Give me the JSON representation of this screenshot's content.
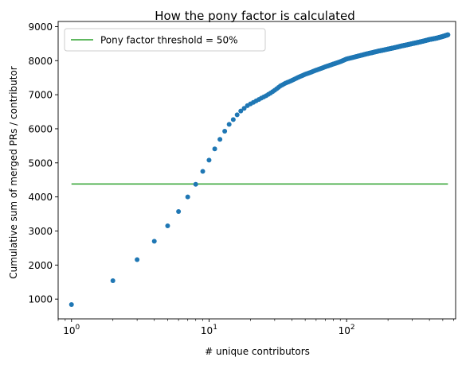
{
  "chart_data": {
    "type": "scatter",
    "title": "How the pony factor is calculated",
    "xlabel": "# unique contributors",
    "ylabel": "Cumulative sum of merged PRs / contributor",
    "xscale": "log",
    "xlim": [
      0.8,
      620
    ],
    "ylim": [
      420,
      9150
    ],
    "x_ticks": [
      {
        "value": 1,
        "base": "10",
        "exp": "0"
      },
      {
        "value": 10,
        "base": "10",
        "exp": "1"
      },
      {
        "value": 100,
        "base": "10",
        "exp": "2"
      }
    ],
    "y_ticks": [
      1000,
      2000,
      3000,
      4000,
      5000,
      6000,
      7000,
      8000,
      9000
    ],
    "grid": false,
    "legend_position": "top-left",
    "threshold": {
      "name": "Pony factor threshold = 50%",
      "value": 4380,
      "x_range": [
        1,
        545
      ],
      "color": "#2ca02c"
    },
    "series": [
      {
        "color": "#1f77b4",
        "points": [
          [
            1,
            840
          ],
          [
            2,
            1540
          ],
          [
            3,
            2160
          ],
          [
            4,
            2700
          ],
          [
            5,
            3150
          ],
          [
            6,
            3570
          ],
          [
            7,
            4000
          ],
          [
            8,
            4370
          ],
          [
            9,
            4750
          ],
          [
            10,
            5080
          ],
          [
            11,
            5410
          ],
          [
            12,
            5690
          ],
          [
            13,
            5930
          ],
          [
            14,
            6130
          ],
          [
            15,
            6270
          ],
          [
            16,
            6410
          ],
          [
            17,
            6520
          ],
          [
            18,
            6600
          ],
          [
            19,
            6680
          ],
          [
            20,
            6730
          ],
          [
            22,
            6820
          ],
          [
            24,
            6900
          ],
          [
            26,
            6970
          ],
          [
            28,
            7050
          ],
          [
            30,
            7130
          ],
          [
            33,
            7260
          ],
          [
            36,
            7340
          ],
          [
            40,
            7420
          ],
          [
            45,
            7520
          ],
          [
            50,
            7600
          ],
          [
            60,
            7720
          ],
          [
            70,
            7820
          ],
          [
            80,
            7900
          ],
          [
            90,
            7970
          ],
          [
            100,
            8050
          ],
          [
            120,
            8130
          ],
          [
            140,
            8200
          ],
          [
            170,
            8280
          ],
          [
            200,
            8340
          ],
          [
            250,
            8430
          ],
          [
            300,
            8500
          ],
          [
            350,
            8560
          ],
          [
            400,
            8620
          ],
          [
            450,
            8660
          ],
          [
            500,
            8710
          ],
          [
            545,
            8760
          ]
        ]
      }
    ]
  }
}
